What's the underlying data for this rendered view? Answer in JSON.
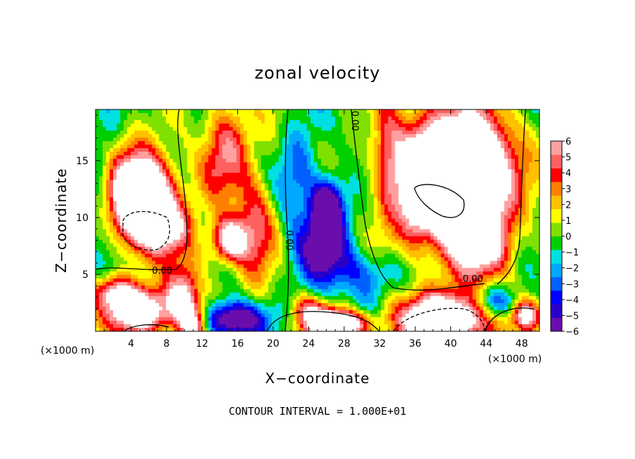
{
  "chart_data": {
    "type": "heatmap",
    "title": "zonal velocity",
    "xlabel": "X−coordinate",
    "ylabel": "Z−coordinate",
    "x_unit": "(×1000 m)",
    "y_unit": "(×1000 m)",
    "xlim": [
      0,
      50
    ],
    "ylim": [
      0,
      19.5
    ],
    "x_ticks": [
      4,
      8,
      12,
      16,
      20,
      24,
      28,
      32,
      36,
      40,
      44,
      48
    ],
    "x_tick_labels": [
      "4",
      "8",
      "12",
      "16",
      "20",
      "24",
      "28",
      "32",
      "36",
      "40",
      "44",
      "48"
    ],
    "y_ticks": [
      5,
      10,
      15
    ],
    "y_tick_labels": [
      "5",
      "10",
      "15"
    ],
    "colorbar": {
      "min": -6,
      "max": 6,
      "ticks": [
        6,
        5,
        4,
        3,
        2,
        1,
        0,
        -1,
        -2,
        -3,
        -4,
        -5,
        -6
      ],
      "tick_labels": [
        "6",
        "5",
        "4",
        "3",
        "2",
        "1",
        "0",
        "−1",
        "−2",
        "−3",
        "−4",
        "−5",
        "−6"
      ],
      "colors": [
        "#6a0dad",
        "#2a00c8",
        "#0000ff",
        "#0060ff",
        "#00a8ff",
        "#00e0e0",
        "#00d000",
        "#80e000",
        "#ffff00",
        "#ffc000",
        "#ff8000",
        "#ff0000",
        "#ff6060",
        "#ffa0a0"
      ]
    },
    "over_range_color": "#ffffff",
    "contour_labels": [
      {
        "text": "0.00",
        "x": 7.5,
        "z": 5.3
      },
      {
        "text": "0.00",
        "x": 21.8,
        "z": 8.0
      },
      {
        "text": "0.00",
        "x": 29.2,
        "z": 18.5
      },
      {
        "text": "0.00",
        "x": 42.5,
        "z": 4.6
      }
    ],
    "contour_interval_note": "CONTOUR INTERVAL = 1.000E+01"
  }
}
